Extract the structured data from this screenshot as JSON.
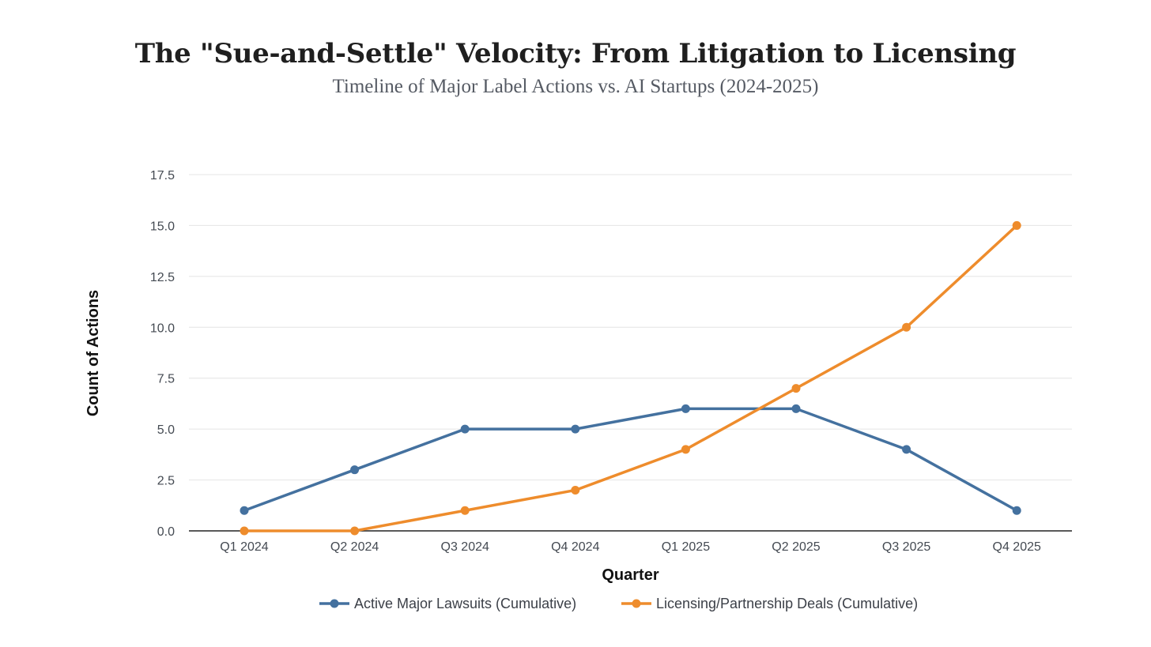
{
  "chart_data": {
    "type": "line",
    "title": "The \"Sue-and-Settle\" Velocity: From Litigation to Licensing",
    "subtitle": "Timeline of Major Label Actions vs. AI Startups (2024-2025)",
    "xlabel": "Quarter",
    "ylabel": "Count of Actions",
    "categories": [
      "Q1 2024",
      "Q2 2024",
      "Q3 2024",
      "Q4 2024",
      "Q1 2025",
      "Q2 2025",
      "Q3 2025",
      "Q4 2025"
    ],
    "ylim": [
      0,
      17.5
    ],
    "yticks": [
      "0.0",
      "2.5",
      "5.0",
      "7.5",
      "10.0",
      "12.5",
      "15.0",
      "17.5"
    ],
    "grid": true,
    "legend_position": "bottom-center",
    "series": [
      {
        "name": "Active Major Lawsuits (Cumulative)",
        "color": "#44719f",
        "values": [
          1,
          3,
          5,
          5,
          6,
          6,
          4,
          1
        ]
      },
      {
        "name": "Licensing/Partnership Deals (Cumulative)",
        "color": "#ee8c2c",
        "values": [
          0,
          0,
          1,
          2,
          4,
          7,
          10,
          15
        ]
      }
    ]
  }
}
